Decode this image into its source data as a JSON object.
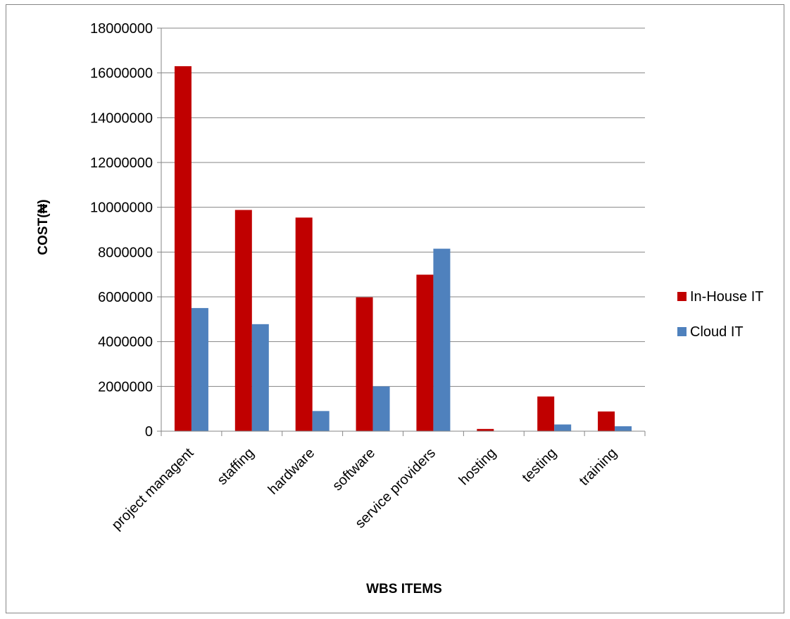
{
  "chart_data": {
    "type": "bar",
    "title": "",
    "xlabel": "WBS ITEMS",
    "ylabel": "COST(₦)",
    "categories": [
      "project managent",
      "staffing",
      "hardware",
      "software",
      "service providers",
      "hosting",
      "testing",
      "training"
    ],
    "series": [
      {
        "name": "In-House IT",
        "color": "#c00000",
        "values": [
          16300000,
          9880000,
          9540000,
          5980000,
          6990000,
          100000,
          1550000,
          880000
        ]
      },
      {
        "name": "Cloud IT",
        "color": "#4f81bd",
        "values": [
          5500000,
          4780000,
          900000,
          2000000,
          8150000,
          0,
          300000,
          220000
        ]
      }
    ],
    "yticks": [
      "0",
      "2000000",
      "4000000",
      "6000000",
      "8000000",
      "10000000",
      "12000000",
      "14000000",
      "16000000",
      "18000000"
    ],
    "ylim": [
      0,
      18000000
    ],
    "grid": true,
    "legend_position": "right"
  }
}
